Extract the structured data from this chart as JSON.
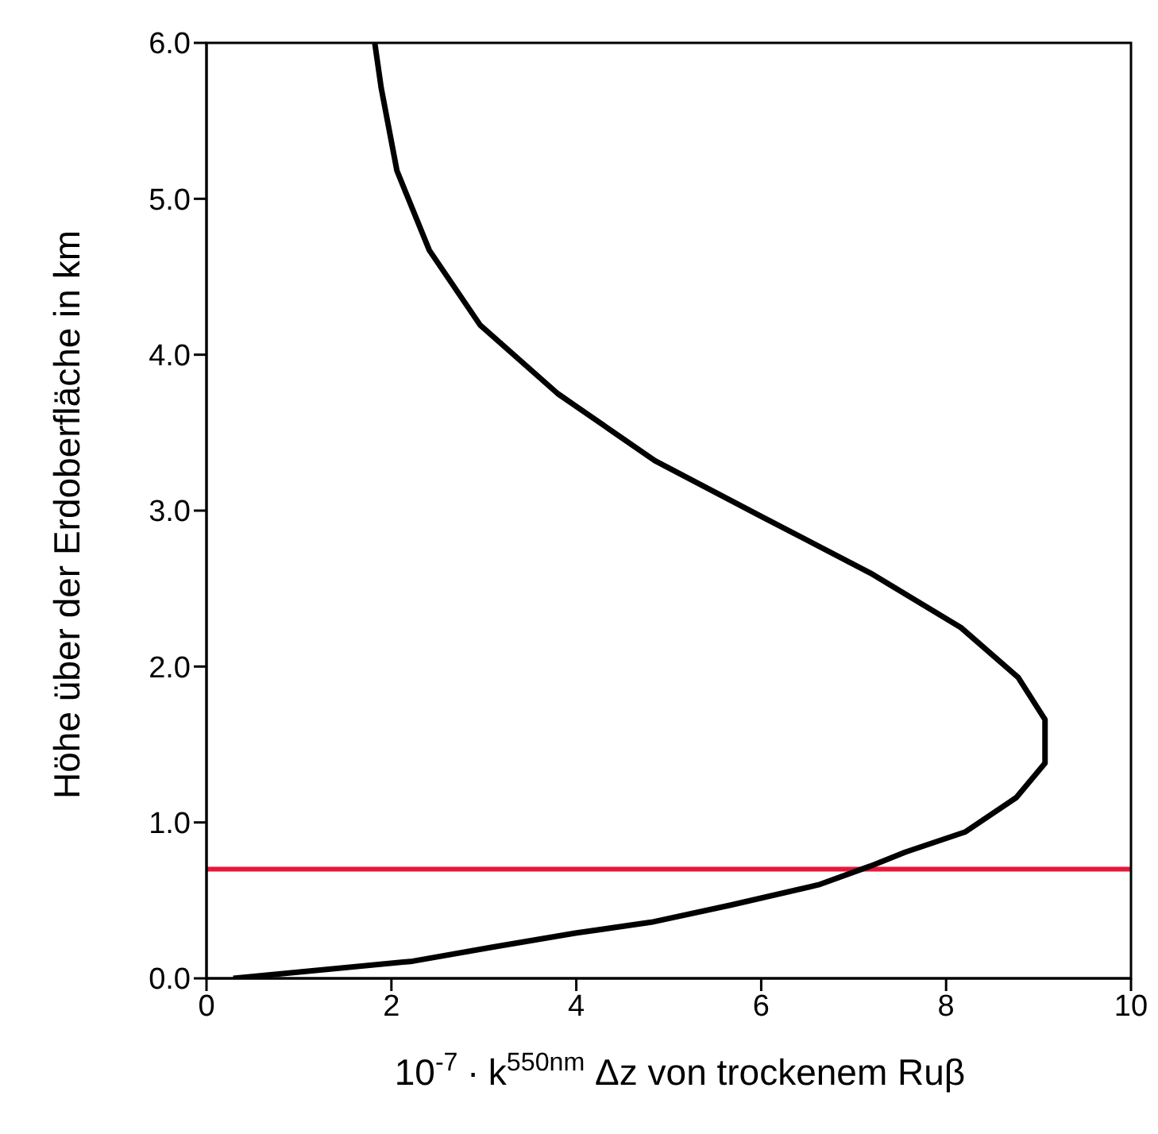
{
  "chart_data": {
    "type": "line",
    "xlabel": "10$^{-7}$∙ k$^{550nm}$Δz von trockenem Ruβ",
    "ylabel": "Höhe über der Erdoberfläche in km",
    "series": [
      {
        "color": "#000000",
        "x": [
          0.29,
          2.23,
          3.09,
          3.99,
          4.81,
          5.67,
          6.62,
          7.18,
          7.56,
          8.21,
          8.76,
          9.07,
          9.07,
          8.78,
          8.16,
          7.18,
          6.01,
          4.85,
          3.8,
          2.96,
          2.41,
          2.06,
          1.89,
          1.82
        ],
        "values": [
          0.0,
          0.11,
          0.2,
          0.29,
          0.36,
          0.47,
          0.6,
          0.72,
          0.81,
          0.94,
          1.16,
          1.38,
          1.66,
          1.93,
          2.25,
          2.6,
          2.96,
          3.32,
          3.75,
          4.19,
          4.67,
          5.18,
          5.71,
          6.0
        ]
      }
    ],
    "ref_lines": [
      {
        "axis": "y",
        "value": 0.7,
        "color": "#e8173a"
      }
    ],
    "xlim": [
      0,
      10
    ],
    "xticks": [
      0,
      2,
      4,
      6,
      8,
      10
    ],
    "ylim": [
      0,
      6
    ],
    "yticks": [
      {
        "value": 0,
        "label": "0.0"
      },
      {
        "value": 1,
        "label": "1.0"
      },
      {
        "value": 2,
        "label": "2.0"
      },
      {
        "value": 3,
        "label": "3.0"
      },
      {
        "value": 4,
        "label": "4.0"
      },
      {
        "value": 5,
        "label": "5.0"
      },
      {
        "value": 6,
        "label": "6.0"
      }
    ],
    "grid": false,
    "legend": false,
    "marker": "none",
    "line_style": "solid"
  }
}
